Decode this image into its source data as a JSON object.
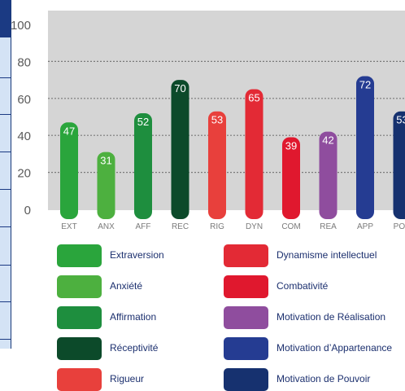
{
  "chart_data": {
    "type": "bar",
    "categories": [
      "EXT",
      "ANX",
      "AFF",
      "REC",
      "RIG",
      "DYN",
      "COM",
      "REA",
      "APP",
      "POU"
    ],
    "values": [
      47,
      31,
      52,
      70,
      53,
      65,
      39,
      42,
      72,
      53
    ],
    "colors": [
      "#2aa53c",
      "#4db03f",
      "#1e8e3e",
      "#0c4a2a",
      "#e8403c",
      "#e32a35",
      "#e0182e",
      "#8f4d9e",
      "#253c92",
      "#16316f"
    ],
    "ylim": [
      0,
      100
    ],
    "yticks": [
      0,
      20,
      40,
      60,
      80,
      100
    ],
    "grid": true,
    "legend": [
      {
        "label": "Extraversion",
        "color": "#2aa53c"
      },
      {
        "label": "Anxiété",
        "color": "#4db03f"
      },
      {
        "label": "Affirmation",
        "color": "#1e8e3e"
      },
      {
        "label": "Réceptivité",
        "color": "#0c4a2a"
      },
      {
        "label": "Rigueur",
        "color": "#e8403c"
      },
      {
        "label": "Dynamisme intellectuel",
        "color": "#e32a35"
      },
      {
        "label": "Combativité",
        "color": "#e0182e"
      },
      {
        "label": "Motivation de Réalisation",
        "color": "#8f4d9e"
      },
      {
        "label": "Motivation d’Appartenance",
        "color": "#253c92"
      },
      {
        "label": "Motivation de Pouvoir",
        "color": "#16316f"
      }
    ]
  }
}
